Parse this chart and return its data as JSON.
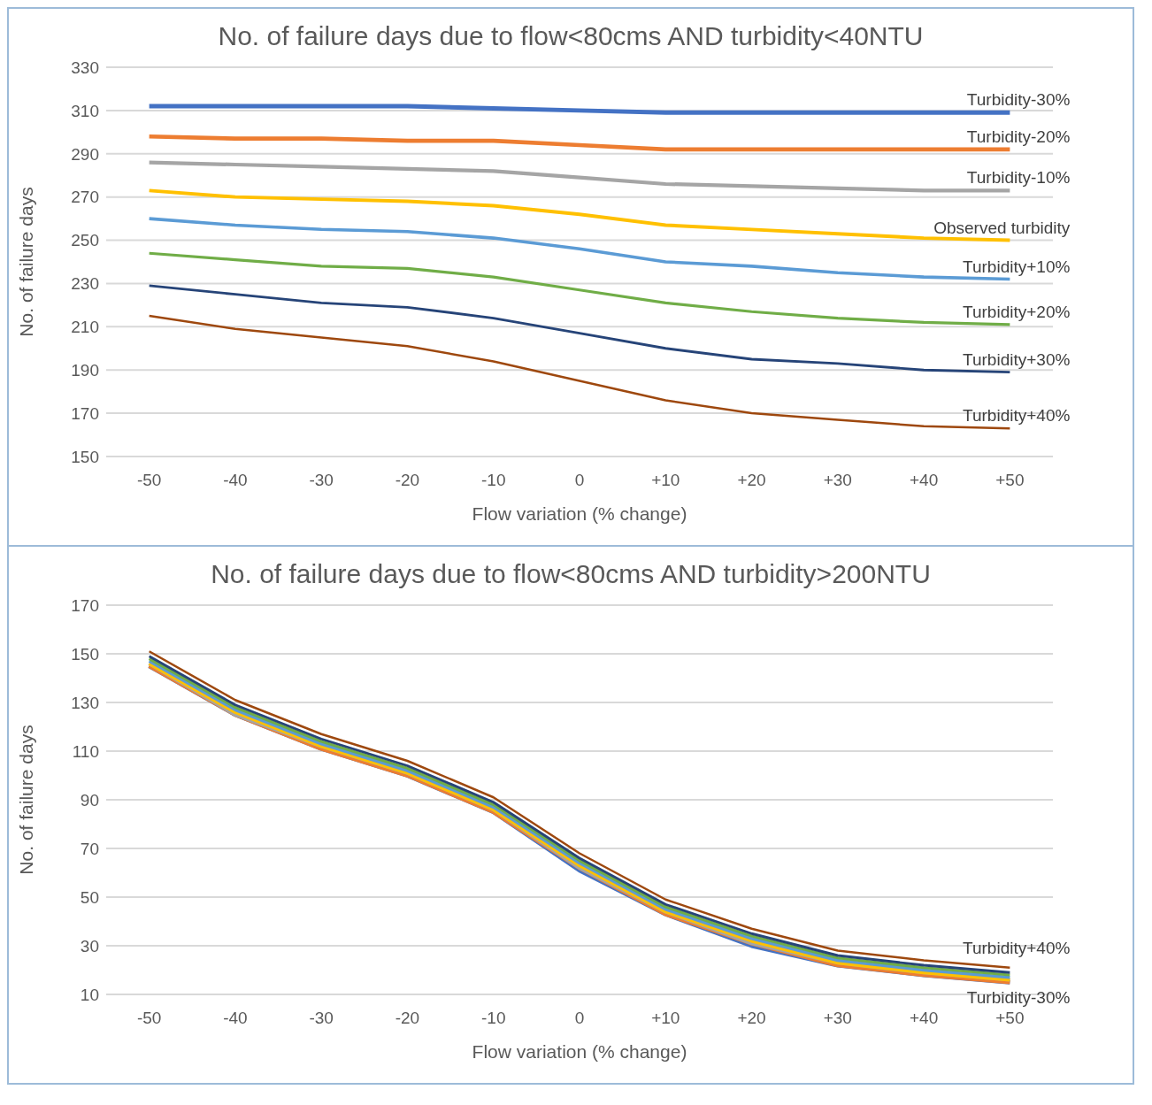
{
  "chart_data": [
    {
      "type": "line",
      "title": "No. of failure days due to flow<80cms AND turbidity<40NTU",
      "xlabel": "Flow variation (%  change)",
      "ylabel": "No. of failure days",
      "categories": [
        "-50",
        "-40",
        "-30",
        "-20",
        "-10",
        "0",
        "+10",
        "+20",
        "+30",
        "+40",
        "+50"
      ],
      "ylim": [
        150,
        330
      ],
      "yticks": [
        150,
        170,
        190,
        210,
        230,
        250,
        270,
        290,
        310,
        330
      ],
      "grid": "y",
      "marker": "none",
      "line_style": "solid",
      "series": [
        {
          "name": "Turbidity-30%",
          "color": "#4472c4",
          "values": [
            312,
            312,
            312,
            312,
            311,
            310,
            309,
            309,
            309,
            309,
            309
          ]
        },
        {
          "name": "Turbidity-20%",
          "color": "#ed7d31",
          "values": [
            298,
            297,
            297,
            296,
            296,
            294,
            292,
            292,
            292,
            292,
            292
          ]
        },
        {
          "name": "Turbidity-10%",
          "color": "#a5a5a5",
          "values": [
            286,
            285,
            284,
            283,
            282,
            279,
            276,
            275,
            274,
            273,
            273
          ]
        },
        {
          "name": "Observed turbidity",
          "color": "#ffc000",
          "values": [
            273,
            270,
            269,
            268,
            266,
            262,
            257,
            255,
            253,
            251,
            250
          ]
        },
        {
          "name": "Turbidity+10%",
          "color": "#5b9bd5",
          "values": [
            260,
            257,
            255,
            254,
            251,
            246,
            240,
            238,
            235,
            233,
            232
          ]
        },
        {
          "name": "Turbidity+20%",
          "color": "#70ad47",
          "values": [
            244,
            241,
            238,
            237,
            233,
            227,
            221,
            217,
            214,
            212,
            211
          ]
        },
        {
          "name": "Turbidity+30%",
          "color": "#264478",
          "values": [
            229,
            225,
            221,
            219,
            214,
            207,
            200,
            195,
            193,
            190,
            189
          ]
        },
        {
          "name": "Turbidity+40%",
          "color": "#9e480e",
          "values": [
            215,
            209,
            205,
            201,
            194,
            185,
            176,
            170,
            167,
            164,
            163
          ]
        }
      ]
    },
    {
      "type": "line",
      "title": "No. of failure days due to flow<80cms AND turbidity>200NTU",
      "xlabel": "Flow variation (%  change)",
      "ylabel": "No. of failure days",
      "categories": [
        "-50",
        "-40",
        "-30",
        "-20",
        "-10",
        "0",
        "+10",
        "+20",
        "+30",
        "+40",
        "+50"
      ],
      "ylim": [
        10,
        170
      ],
      "yticks": [
        10,
        30,
        50,
        70,
        90,
        110,
        130,
        150,
        170
      ],
      "grid": "y",
      "marker": "none",
      "line_style": "solid",
      "series": [
        {
          "name": "Turbidity-30%",
          "color": "#4472c4",
          "values": [
            145,
            125,
            111,
            100,
            85,
            61,
            43,
            30,
            22,
            18,
            15
          ]
        },
        {
          "color": "#ed7d31",
          "values": [
            145,
            125,
            111,
            100,
            85,
            62,
            43,
            31,
            22,
            18,
            15
          ]
        },
        {
          "color": "#a5a5a5",
          "values": [
            146,
            125,
            112,
            101,
            86,
            62,
            44,
            31,
            23,
            19,
            16
          ]
        },
        {
          "color": "#ffc000",
          "values": [
            146,
            126,
            112,
            101,
            86,
            63,
            44,
            32,
            23,
            19,
            16
          ]
        },
        {
          "color": "#5b9bd5",
          "values": [
            147,
            127,
            113,
            102,
            87,
            64,
            45,
            33,
            24,
            20,
            17
          ]
        },
        {
          "color": "#70ad47",
          "values": [
            148,
            128,
            114,
            103,
            88,
            65,
            46,
            34,
            25,
            21,
            18
          ]
        },
        {
          "color": "#264478",
          "values": [
            149,
            129,
            115,
            104,
            89,
            66,
            47,
            35,
            26,
            22,
            19
          ]
        },
        {
          "name": "Turbidity+40%",
          "color": "#9e480e",
          "values": [
            151,
            131,
            117,
            106,
            91,
            68,
            49,
            37,
            28,
            24,
            21
          ]
        }
      ]
    }
  ]
}
